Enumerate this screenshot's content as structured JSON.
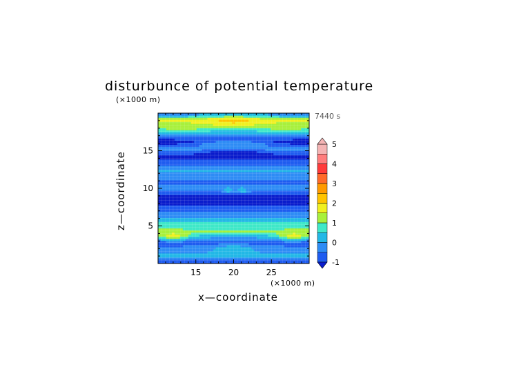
{
  "chart_data": {
    "type": "heatmap",
    "title": "disturbunce of potential temperature",
    "xlabel": "x—coordinate",
    "ylabel": "z—coordinate",
    "x_unit": "(×1000 m)",
    "y_unit": "(×1000 m)",
    "time_label": "7440 s",
    "xlim": [
      10,
      30
    ],
    "ylim": [
      0,
      20
    ],
    "x_ticks": [
      15,
      20,
      25
    ],
    "y_ticks": [
      5,
      10,
      15
    ],
    "colorbar": {
      "levels": [
        -1,
        -0.5,
        0,
        0.5,
        1,
        1.5,
        2,
        2.5,
        3,
        3.5,
        4,
        4.5,
        5
      ],
      "tick_labels": [
        "-1",
        "0",
        "1",
        "2",
        "3",
        "4",
        "5"
      ],
      "tick_values": [
        -1,
        0,
        1,
        2,
        3,
        4,
        5
      ],
      "colors": [
        "#0a1ccc",
        "#1f5cf0",
        "#2e8cf5",
        "#22b8e6",
        "#3fe8c8",
        "#a8f03c",
        "#f0f020",
        "#ffc400",
        "#ff9a00",
        "#ff6a2a",
        "#ff3a3a",
        "#ff7d7d",
        "#f4b4b4"
      ],
      "extend": "both"
    },
    "bands": [
      {
        "z": 0.3,
        "value": -0.3
      },
      {
        "z": 1.0,
        "value": 0.8
      },
      {
        "z": 1.9,
        "value": 0.2
      },
      {
        "z": 2.8,
        "value": -0.2
      },
      {
        "z": 3.6,
        "value": 0.6
      },
      {
        "z": 4.3,
        "value": 1.6
      },
      {
        "z": 5.2,
        "value": 1.2
      },
      {
        "z": 6.3,
        "value": 0.3
      },
      {
        "z": 7.5,
        "value": -0.3
      },
      {
        "z": 8.7,
        "value": -0.9
      },
      {
        "z": 9.8,
        "value": 0.2
      },
      {
        "z": 11.0,
        "value": -0.1
      },
      {
        "z": 12.3,
        "value": 0.6
      },
      {
        "z": 13.4,
        "value": -0.2
      },
      {
        "z": 14.3,
        "value": -0.7
      },
      {
        "z": 15.3,
        "value": 0.3
      },
      {
        "z": 16.2,
        "value": -1.0
      },
      {
        "z": 17.5,
        "value": 0.8
      },
      {
        "z": 18.2,
        "value": 1.5
      },
      {
        "z": 19.0,
        "value": 2.2
      },
      {
        "z": 19.8,
        "value": 0.4
      }
    ],
    "features": [
      {
        "x": 20,
        "z": 19.0,
        "rx": 4.5,
        "rz": 0.6,
        "value": 2.6
      },
      {
        "x": 13,
        "z": 18.2,
        "rx": 2.8,
        "rz": 0.6,
        "value": 1.8
      },
      {
        "x": 27,
        "z": 18.2,
        "rx": 2.8,
        "rz": 0.6,
        "value": 1.8
      },
      {
        "x": 20,
        "z": 16.0,
        "rx": 5.5,
        "rz": 0.5,
        "value": 0.5
      },
      {
        "x": 20,
        "z": 14.6,
        "rx": 3.8,
        "rz": 0.6,
        "value": -1.0
      },
      {
        "x": 19.3,
        "z": 9.8,
        "rx": 0.6,
        "rz": 0.4,
        "value": 1.0
      },
      {
        "x": 21.2,
        "z": 9.8,
        "rx": 0.6,
        "rz": 0.4,
        "value": 1.0
      },
      {
        "x": 20,
        "z": 8.5,
        "rx": 4.0,
        "rz": 0.6,
        "value": -1.0
      },
      {
        "x": 12,
        "z": 3.8,
        "rx": 2.5,
        "rz": 0.5,
        "value": 2.2
      },
      {
        "x": 28,
        "z": 3.8,
        "rx": 2.5,
        "rz": 0.5,
        "value": 2.2
      },
      {
        "x": 20,
        "z": 5.0,
        "rx": 6.0,
        "rz": 0.6,
        "value": 1.4
      },
      {
        "x": 20,
        "z": 2.0,
        "rx": 3.0,
        "rz": 0.5,
        "value": 0.9
      }
    ]
  }
}
